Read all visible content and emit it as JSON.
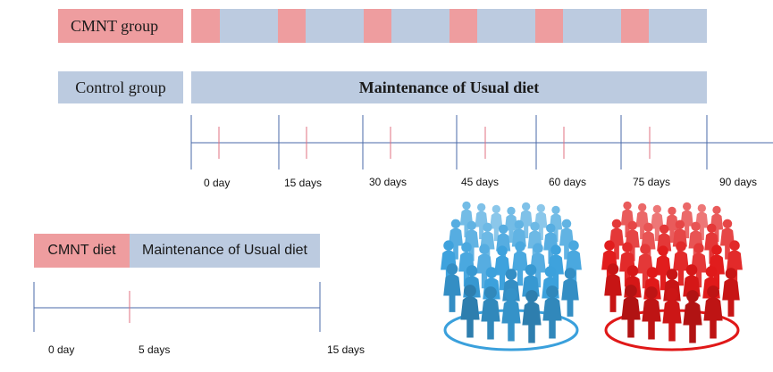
{
  "colors": {
    "cmnt": "#ee9d9f",
    "usual": "#bccbe0",
    "axis": "#4a6aa8",
    "red_tick": "#e07080",
    "blue_people": "#3aa0dc",
    "red_people": "#e01818"
  },
  "groups": {
    "cmnt_label": "CMNT group",
    "control_label": "Control group",
    "control_bar_text": "Maintenance of Usual diet"
  },
  "long_timeline": {
    "ticks": [
      "0 day",
      "15 days",
      "30 days",
      "45 days",
      "60 days",
      "75 days",
      "90 days"
    ]
  },
  "cycle": {
    "label_diet": "CMNT diet",
    "label_usual": "Maintenance of Usual diet",
    "ticks": [
      "0 day",
      "5 days",
      "15 days"
    ]
  },
  "illustrations": {
    "left": "blue-people-group-icon",
    "right": "red-people-group-icon"
  }
}
